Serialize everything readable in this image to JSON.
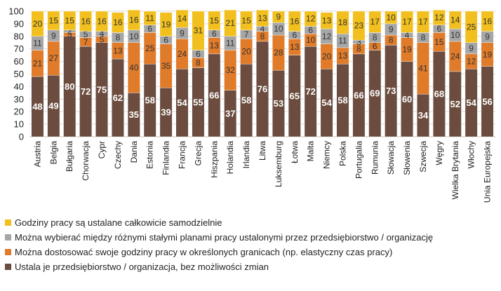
{
  "chart_data": {
    "type": "bar",
    "stacked": true,
    "title": "",
    "xlabel": "",
    "ylabel": "",
    "ylim": [
      0,
      100
    ],
    "yticks": [
      0,
      10,
      20,
      30,
      40,
      50,
      60,
      70,
      80,
      90,
      100
    ],
    "grid": true,
    "legend_position": "bottom-left",
    "categories": [
      "Austria",
      "Belgia",
      "Bułgaria",
      "Chorwacja",
      "Cypr",
      "Czechy",
      "Dania",
      "Estonia",
      "Finlandia",
      "Francja",
      "Grecja",
      "Hiszpania",
      "Holandia",
      "Irlandia",
      "Litwa",
      "Luksemburg",
      "Łotwa",
      "Malta",
      "Niemcy",
      "Polska",
      "Portugalia",
      "Rumunia",
      "Słowacja",
      "Słowenia",
      "Szwecja",
      "Węgry",
      "Wielka Brytania",
      "Włochy",
      "Unia Europejska"
    ],
    "series": [
      {
        "name": "Ustala je przedsiębiorstwo / organizacja, bez możliwości zmian",
        "color": "#6b4c3f",
        "label_style": "light",
        "values": [
          48,
          49,
          80,
          72,
          75,
          62,
          35,
          58,
          39,
          54,
          55,
          66,
          37,
          58,
          76,
          53,
          65,
          72,
          54,
          58,
          66,
          69,
          73,
          60,
          34,
          68,
          52,
          54,
          56
        ]
      },
      {
        "name": "Można dostosować swoje godziny pracy w określonych granicach (np. elastyczny czas pracy)",
        "color": "#e07b2a",
        "label_style": "dark",
        "values": [
          21,
          27,
          3,
          7,
          5,
          13,
          40,
          25,
          35,
          24,
          8,
          13,
          32,
          20,
          8,
          28,
          13,
          10,
          20,
          13,
          8,
          6,
          8,
          19,
          41,
          15,
          24,
          12,
          19
        ]
      },
      {
        "name": "Można wybierać między różnymi stałymi planami pracy ustalonymi przez przedsiębiorstwo / organizację",
        "color": "#a6a6a6",
        "label_style": "dark",
        "values": [
          11,
          9,
          2,
          5,
          4,
          8,
          10,
          6,
          6,
          9,
          6,
          6,
          11,
          7,
          4,
          10,
          6,
          6,
          12,
          11,
          3,
          8,
          9,
          4,
          8,
          6,
          10,
          9,
          9
        ]
      },
      {
        "name": "Godziny pracy są ustalane całkowicie samodzielnie",
        "color": "#f2c01e",
        "label_style": "dark",
        "values": [
          20,
          15,
          15,
          16,
          16,
          16,
          16,
          11,
          19,
          14,
          31,
          15,
          21,
          15,
          13,
          9,
          16,
          12,
          13,
          18,
          23,
          17,
          10,
          17,
          17,
          12,
          14,
          25,
          16
        ]
      }
    ],
    "legend_order": [
      3,
      2,
      1,
      0
    ]
  }
}
